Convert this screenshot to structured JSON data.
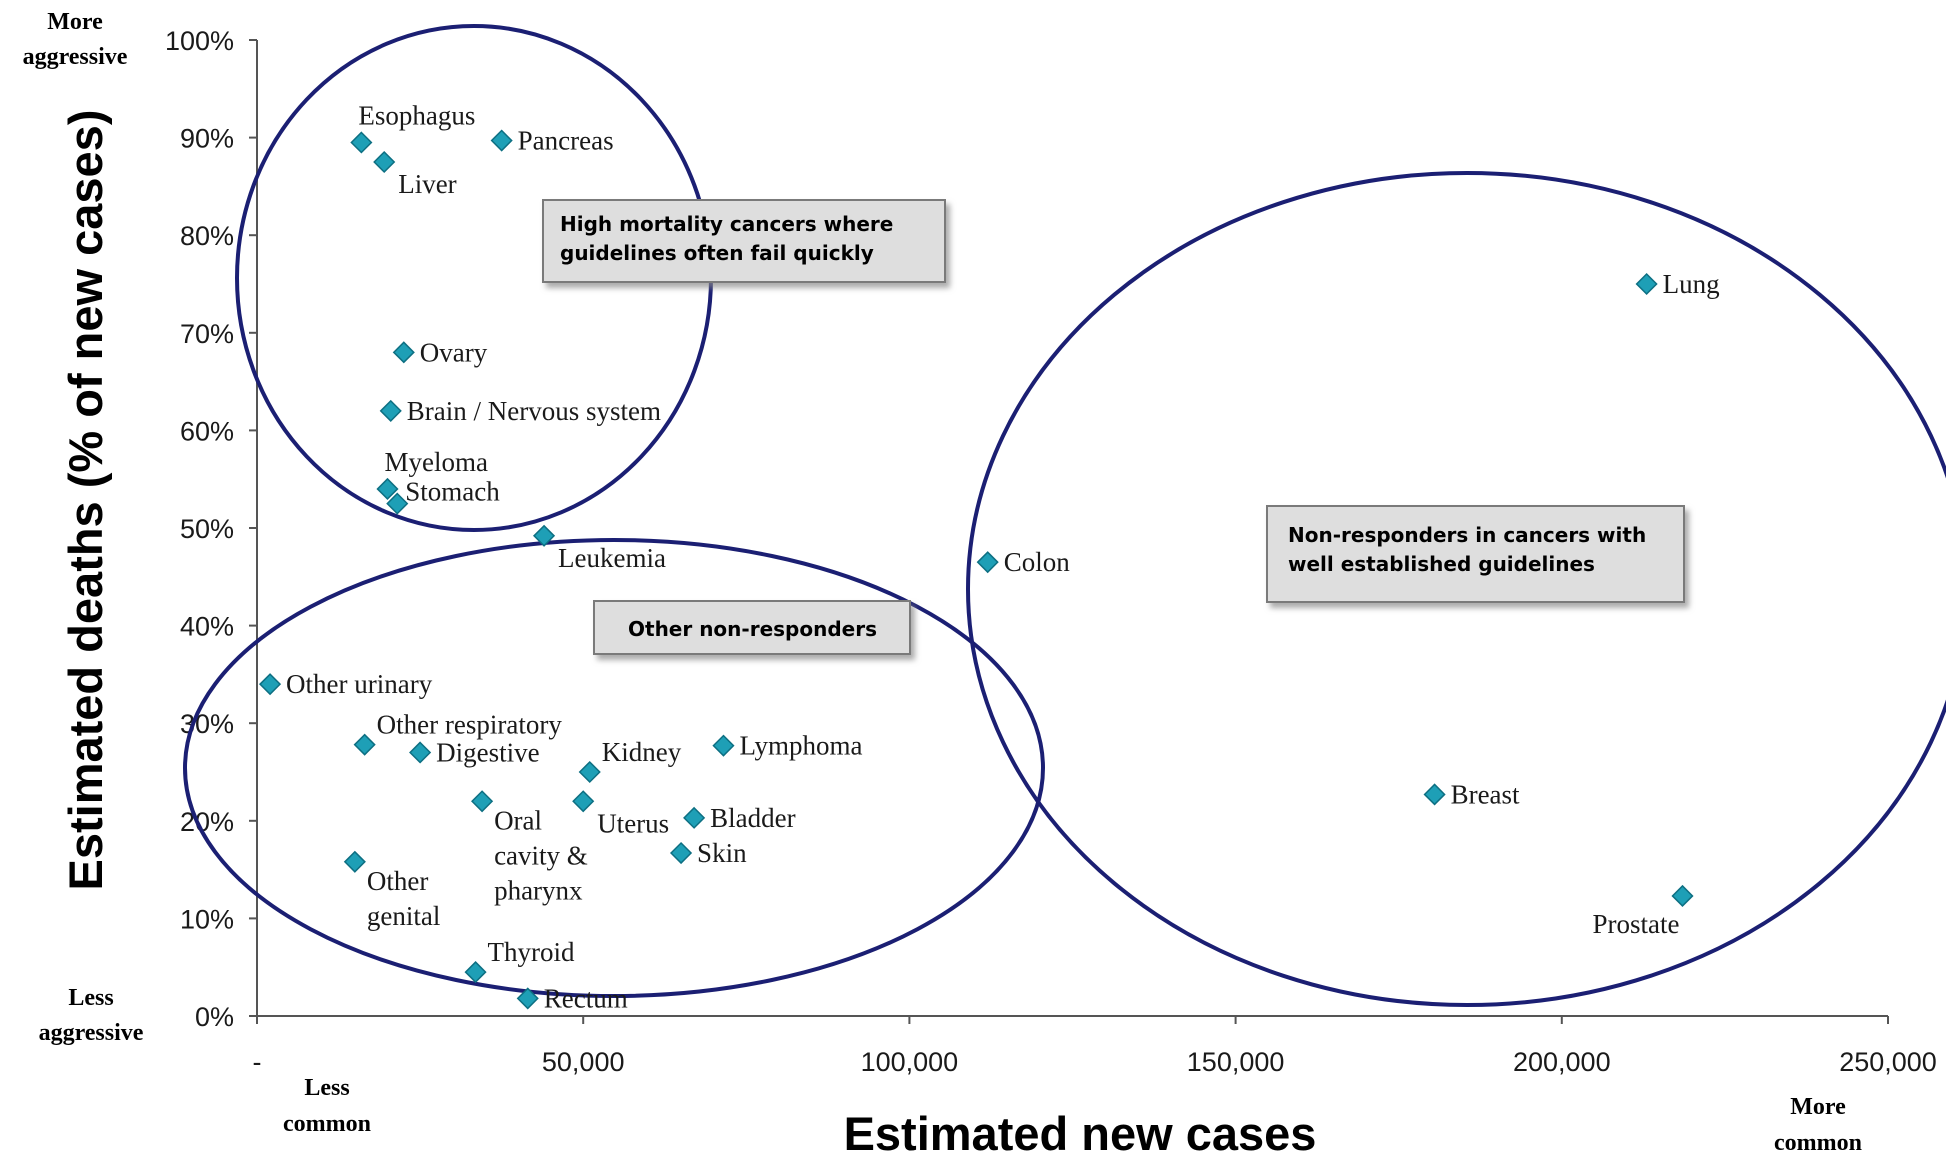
{
  "chart_data": {
    "type": "scatter",
    "xlabel": "Estimated new cases",
    "ylabel": "Estimated deaths (% of new cases)",
    "xlim": [
      0,
      250000
    ],
    "ylim": [
      0,
      100
    ],
    "xticks": [
      {
        "v": 0,
        "label": "-"
      },
      {
        "v": 50000,
        "label": "50,000"
      },
      {
        "v": 100000,
        "label": "100,000"
      },
      {
        "v": 150000,
        "label": "150,000"
      },
      {
        "v": 200000,
        "label": "200,000"
      },
      {
        "v": 250000,
        "label": "250,000"
      }
    ],
    "yticks": [
      {
        "v": 0,
        "label": "0%"
      },
      {
        "v": 10,
        "label": "10%"
      },
      {
        "v": 20,
        "label": "20%"
      },
      {
        "v": 30,
        "label": "30%"
      },
      {
        "v": 40,
        "label": "40%"
      },
      {
        "v": 50,
        "label": "50%"
      },
      {
        "v": 60,
        "label": "60%"
      },
      {
        "v": 70,
        "label": "70%"
      },
      {
        "v": 80,
        "label": "80%"
      },
      {
        "v": 90,
        "label": "90%"
      },
      {
        "v": 100,
        "label": "100%"
      }
    ],
    "corner_labels": {
      "top_left": [
        "More",
        "aggressive"
      ],
      "bottom_left": [
        "Less",
        "aggressive"
      ],
      "x_left": [
        "Less",
        "common"
      ],
      "x_right": [
        "More",
        "common"
      ]
    },
    "points": [
      {
        "label": [
          "Esophagus"
        ],
        "x": 16000,
        "y": 89.5,
        "pos": "above"
      },
      {
        "label": [
          "Liver"
        ],
        "x": 19500,
        "y": 87.5,
        "pos": "below-right"
      },
      {
        "label": [
          "Pancreas"
        ],
        "x": 37500,
        "y": 89.7,
        "pos": "right"
      },
      {
        "label": [
          "Ovary"
        ],
        "x": 22500,
        "y": 68.0,
        "pos": "right"
      },
      {
        "label": [
          "Brain / Nervous system"
        ],
        "x": 20500,
        "y": 62.0,
        "pos": "right"
      },
      {
        "label": [
          "Myeloma"
        ],
        "x": 20000,
        "y": 54.0,
        "pos": "above"
      },
      {
        "label": [
          "Stomach"
        ],
        "x": 21500,
        "y": 52.5,
        "pos": "right-up"
      },
      {
        "label": [
          "Leukemia"
        ],
        "x": 44000,
        "y": 49.2,
        "pos": "below-right"
      },
      {
        "label": [
          "Colon"
        ],
        "x": 112000,
        "y": 46.5,
        "pos": "right"
      },
      {
        "label": [
          "Other urinary"
        ],
        "x": 2000,
        "y": 34.0,
        "pos": "right"
      },
      {
        "label": [
          "Other respiratory"
        ],
        "x": 16500,
        "y": 27.8,
        "pos": "above-right"
      },
      {
        "label": [
          "Digestive"
        ],
        "x": 25000,
        "y": 27.0,
        "pos": "right"
      },
      {
        "label": [
          "Kidney"
        ],
        "x": 51000,
        "y": 25.0,
        "pos": "above-right"
      },
      {
        "label": [
          "Lymphoma"
        ],
        "x": 71500,
        "y": 27.7,
        "pos": "right"
      },
      {
        "label": [
          "Oral",
          "cavity &",
          "pharynx"
        ],
        "x": 34500,
        "y": 22.0,
        "pos": "below-multi"
      },
      {
        "label": [
          "Uterus"
        ],
        "x": 50000,
        "y": 22.0,
        "pos": "below-right"
      },
      {
        "label": [
          "Bladder"
        ],
        "x": 67000,
        "y": 20.3,
        "pos": "right"
      },
      {
        "label": [
          "Skin"
        ],
        "x": 65000,
        "y": 16.7,
        "pos": "right"
      },
      {
        "label": [
          "Other",
          "genital"
        ],
        "x": 15000,
        "y": 15.8,
        "pos": "below-multi"
      },
      {
        "label": [
          "Thyroid"
        ],
        "x": 33500,
        "y": 4.5,
        "pos": "above-right"
      },
      {
        "label": [
          "Rectum"
        ],
        "x": 41500,
        "y": 1.8,
        "pos": "right"
      },
      {
        "label": [
          "Lung"
        ],
        "x": 213000,
        "y": 75.0,
        "pos": "right"
      },
      {
        "label": [
          "Breast"
        ],
        "x": 180500,
        "y": 22.7,
        "pos": "right"
      },
      {
        "label": [
          "Prostate"
        ],
        "x": 218500,
        "y": 12.3,
        "pos": "below-left"
      }
    ],
    "annotation_boxes": [
      {
        "name": "high-mortality-box",
        "lines": [
          "High mortality cancers where",
          "guidelines often fail quickly"
        ]
      },
      {
        "name": "other-nonresponders-box",
        "lines": [
          "Other non-responders"
        ]
      },
      {
        "name": "nonresponders-guidelines-box",
        "lines": [
          "Non-responders in cancers with",
          "well established guidelines"
        ]
      }
    ],
    "colors": {
      "marker": "#1e9fb6",
      "marker_stroke": "#0d6f82",
      "ellipse": "#1b1f73",
      "box_fill": "#dedede",
      "box_stroke": "#7a7a7a"
    }
  }
}
